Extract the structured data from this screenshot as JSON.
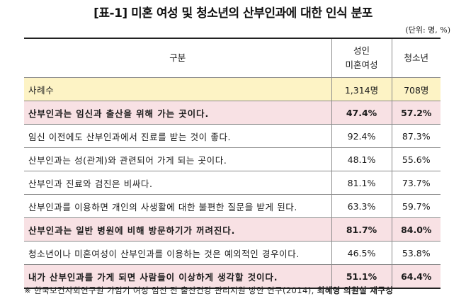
{
  "title": "[표-1] 미혼 여성 및 청소년의 산부인과에 대한 인식 분포",
  "unit": "(단위: 명, %)",
  "table": {
    "header": {
      "category": "구분",
      "adult_line1": "성인",
      "adult_line2": "미혼여성",
      "youth": "청소년"
    },
    "rows": [
      {
        "label": "사례수",
        "adult": "1,314명",
        "youth": "708명",
        "style": "sample"
      },
      {
        "label": "산부인과는 임신과 출산을 위해 가는 곳이다.",
        "adult": "47.4%",
        "youth": "57.2%",
        "style": "highlight"
      },
      {
        "label": "임신 이전에도 산부인과에서 진료를 받는 것이 좋다.",
        "adult": "92.4%",
        "youth": "87.3%",
        "style": "normal"
      },
      {
        "label": "산부인과는 성(관계)와 관련되어 가게 되는 곳이다.",
        "adult": "48.1%",
        "youth": "55.6%",
        "style": "normal"
      },
      {
        "label": "산부인과 진료와 검진은 비싸다.",
        "adult": "81.1%",
        "youth": "73.7%",
        "style": "normal"
      },
      {
        "label": "산부인과를 이용하면 개인의 사생활에 대한 불편한 질문을 받게 된다.",
        "adult": "63.3%",
        "youth": "59.7%",
        "style": "normal"
      },
      {
        "label": "산부인과는 일반 병원에 비해 방문하기가 꺼려진다.",
        "adult": "81.7%",
        "youth": "84.0%",
        "style": "highlight"
      },
      {
        "label": "청소년이나 미혼여성이 산부인과를 이용하는 것은 예외적인 경우이다.",
        "adult": "46.5%",
        "youth": "53.8%",
        "style": "normal"
      },
      {
        "label": "내가 산부인과를 가게 되면 사람들이 이상하게 생각할 것이다.",
        "adult": "51.1%",
        "youth": "64.4%",
        "style": "highlight"
      }
    ]
  },
  "footnote": {
    "prefix": "※ 한국보건사회연구원 가임기 여성 임신 전 출산건강 관리지원 방안 연구(2014),",
    "emphasis": "최혜영 의원실 재구성"
  },
  "colors": {
    "sample_row": "#fdf3c5",
    "highlight_row": "#f8e1e4",
    "border": "#8a8a8a",
    "rule": "#222222"
  }
}
